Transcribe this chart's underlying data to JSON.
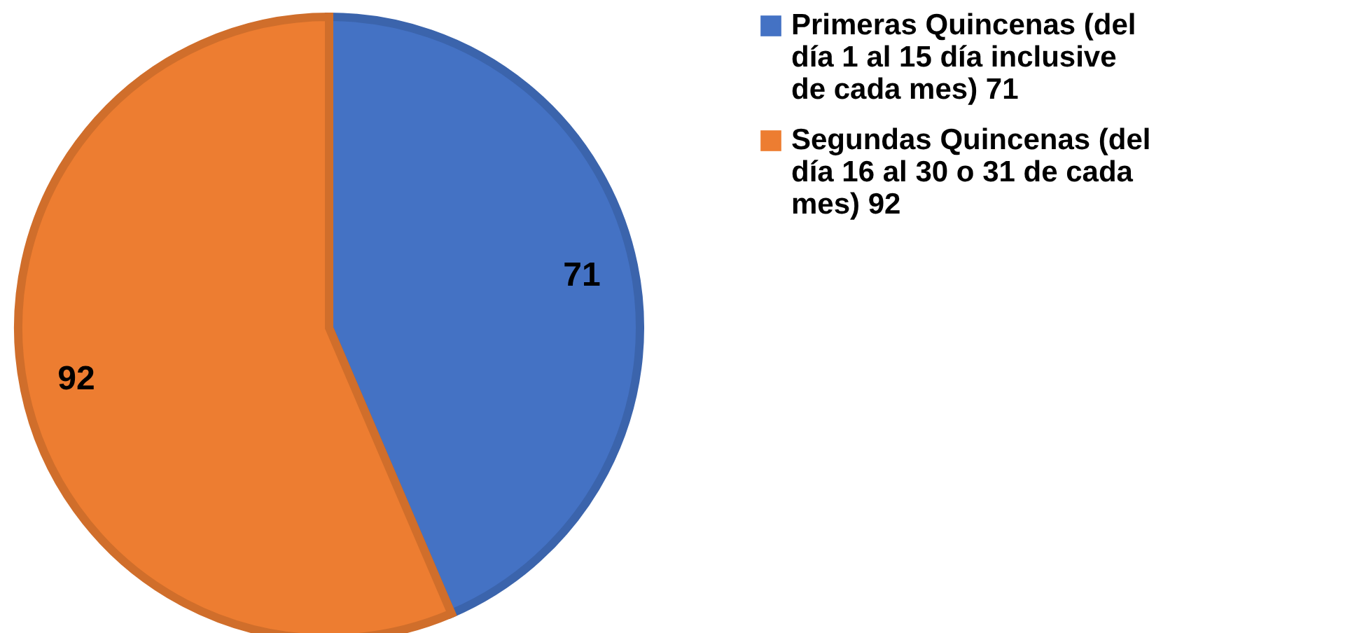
{
  "chart_data": {
    "type": "pie",
    "categories": [
      "Primeras Quincenas (del día 1 al 15 día inclusive de cada mes) 71",
      "Segundas Quincenas (del día 16 al 30 o 31 de cada mes) 92"
    ],
    "values": [
      71,
      92
    ],
    "colors": [
      "#4472c4",
      "#ed7d31"
    ],
    "data_labels": true,
    "legend": "right"
  }
}
